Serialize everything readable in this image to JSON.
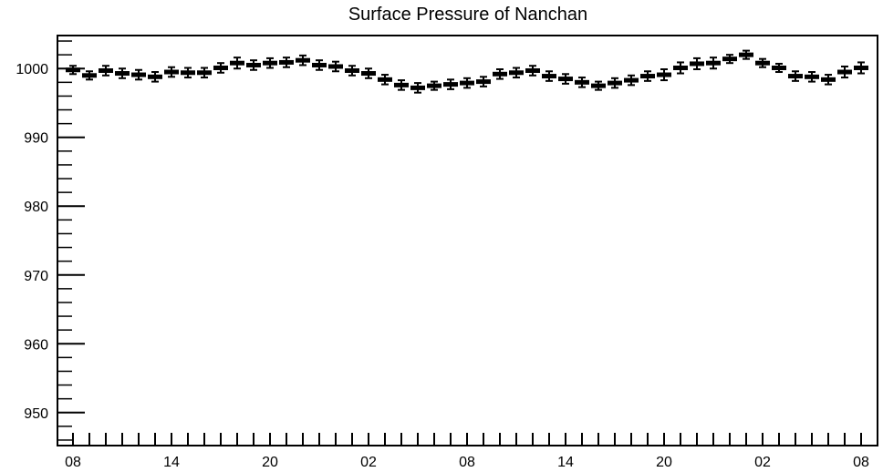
{
  "chart_data": {
    "type": "scatter",
    "title": "Surface Pressure of Nanchan",
    "xlabel": "",
    "ylabel": "",
    "ylim": [
      945.2,
      1004.8
    ],
    "y_ticks": [
      950,
      960,
      970,
      980,
      990,
      1000
    ],
    "y_tick_labels": [
      "950",
      "960",
      "970",
      "980",
      "990",
      "1000"
    ],
    "x_hours_span": [
      0,
      48
    ],
    "x_ticks_hours": [
      0,
      6,
      12,
      18,
      24,
      30,
      36,
      42,
      48
    ],
    "x_tick_labels": [
      "08",
      "14",
      "20",
      "02",
      "08",
      "14",
      "20",
      "02",
      "08"
    ],
    "grid": false,
    "error_bars": true,
    "series": [
      {
        "x_hours": [
          0,
          1,
          2,
          3,
          4,
          5,
          6,
          7,
          8,
          9,
          10,
          11,
          12,
          13,
          14,
          15,
          16,
          17,
          18,
          19,
          20,
          21,
          22,
          23,
          24,
          25,
          26,
          27,
          28,
          29,
          30,
          31,
          32,
          33,
          34,
          35,
          36,
          37,
          38,
          39,
          40,
          41,
          42,
          43,
          44,
          45,
          46,
          47,
          48
        ],
        "values": [
          999.8,
          999.0,
          999.7,
          999.3,
          999.1,
          998.8,
          999.5,
          999.4,
          999.4,
          1000.1,
          1000.8,
          1000.5,
          1000.8,
          1000.9,
          1001.2,
          1000.5,
          1000.3,
          999.7,
          999.3,
          998.4,
          997.6,
          997.2,
          997.5,
          997.7,
          997.9,
          998.1,
          999.2,
          999.4,
          999.7,
          998.9,
          998.5,
          998.0,
          997.5,
          997.9,
          998.3,
          998.9,
          999.1,
          1000.1,
          1000.7,
          1000.8,
          1001.4,
          1002.0,
          1000.8,
          1000.1,
          998.9,
          998.8,
          998.4,
          999.5,
          1000.1
        ],
        "errors": [
          0.6,
          0.6,
          0.7,
          0.7,
          0.7,
          0.7,
          0.7,
          0.7,
          0.7,
          0.7,
          0.8,
          0.7,
          0.7,
          0.7,
          0.7,
          0.7,
          0.7,
          0.7,
          0.7,
          0.7,
          0.7,
          0.7,
          0.6,
          0.7,
          0.7,
          0.7,
          0.7,
          0.7,
          0.7,
          0.7,
          0.7,
          0.7,
          0.6,
          0.7,
          0.7,
          0.7,
          0.8,
          0.8,
          0.8,
          0.8,
          0.6,
          0.6,
          0.6,
          0.6,
          0.7,
          0.7,
          0.7,
          0.8,
          0.8
        ]
      }
    ]
  }
}
